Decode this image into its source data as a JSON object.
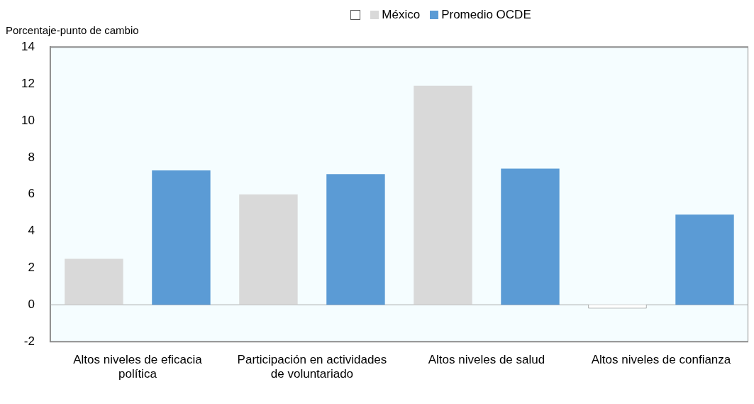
{
  "chart_data": {
    "type": "bar",
    "ylabel": "Porcentaje-punto de cambio",
    "categories": [
      "Altos niveles de eficacia política",
      "Participación en actividades de voluntariado",
      "Altos niveles de salud",
      "Altos niveles de confianza"
    ],
    "series": [
      {
        "name": "México",
        "color": "#d9d9d9",
        "colors": [
          "#d9d9d9",
          "#d9d9d9",
          "#d9d9d9",
          "#ffffff"
        ],
        "values": [
          2.5,
          6.0,
          11.9,
          -0.2
        ]
      },
      {
        "name": "Promedio OCDE",
        "color": "#5b9bd5",
        "values": [
          7.3,
          7.1,
          7.4,
          4.9
        ]
      }
    ],
    "ylim": [
      -2,
      14
    ],
    "yticks": [
      -2,
      0,
      2,
      4,
      6,
      8,
      10,
      12,
      14
    ],
    "grid": false,
    "legend": "top",
    "ref_lines": [
      {
        "axis": "y",
        "value": 0,
        "color": "#a6a6a6"
      }
    ]
  }
}
